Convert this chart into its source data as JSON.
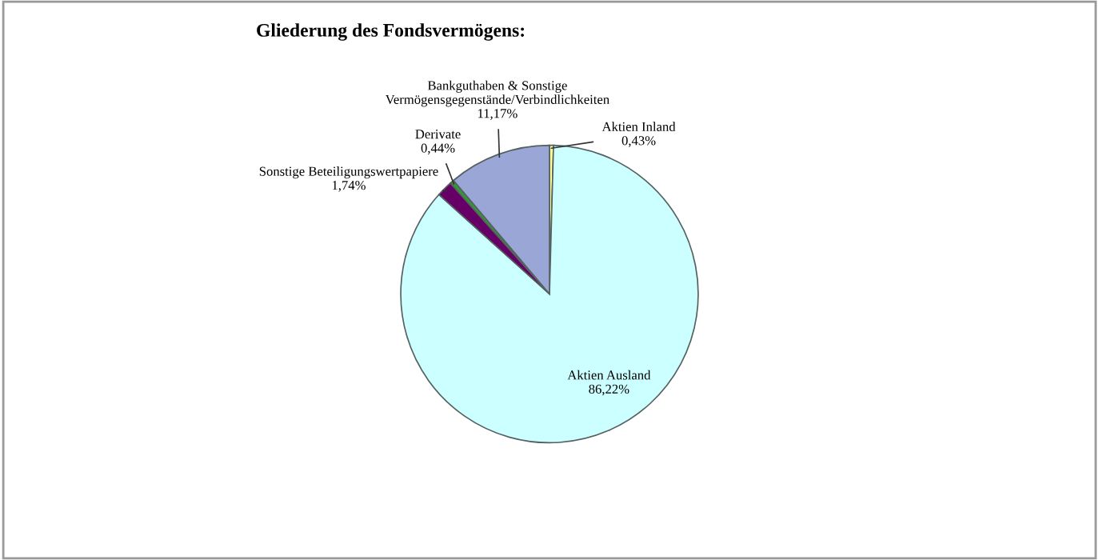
{
  "chart_data": {
    "type": "pie",
    "title": "Gliederung des Fondsvermögens:",
    "categories": [
      "Aktien Inland",
      "Aktien Ausland",
      "Sonstige Beteiligungswertpapiere",
      "Derivate",
      "Bankguthaben & Sonstige\nVermögensgegenstände/Verbindlichkeiten"
    ],
    "values": [
      0.43,
      86.22,
      1.74,
      0.44,
      11.17
    ],
    "value_labels": [
      "0,43%",
      "86,22%",
      "1,74%",
      "0,44%",
      "11,17%"
    ],
    "colors": [
      "#ffff99",
      "#ccffff",
      "#660066",
      "#339933",
      "#99a6d6"
    ],
    "legend": false
  }
}
